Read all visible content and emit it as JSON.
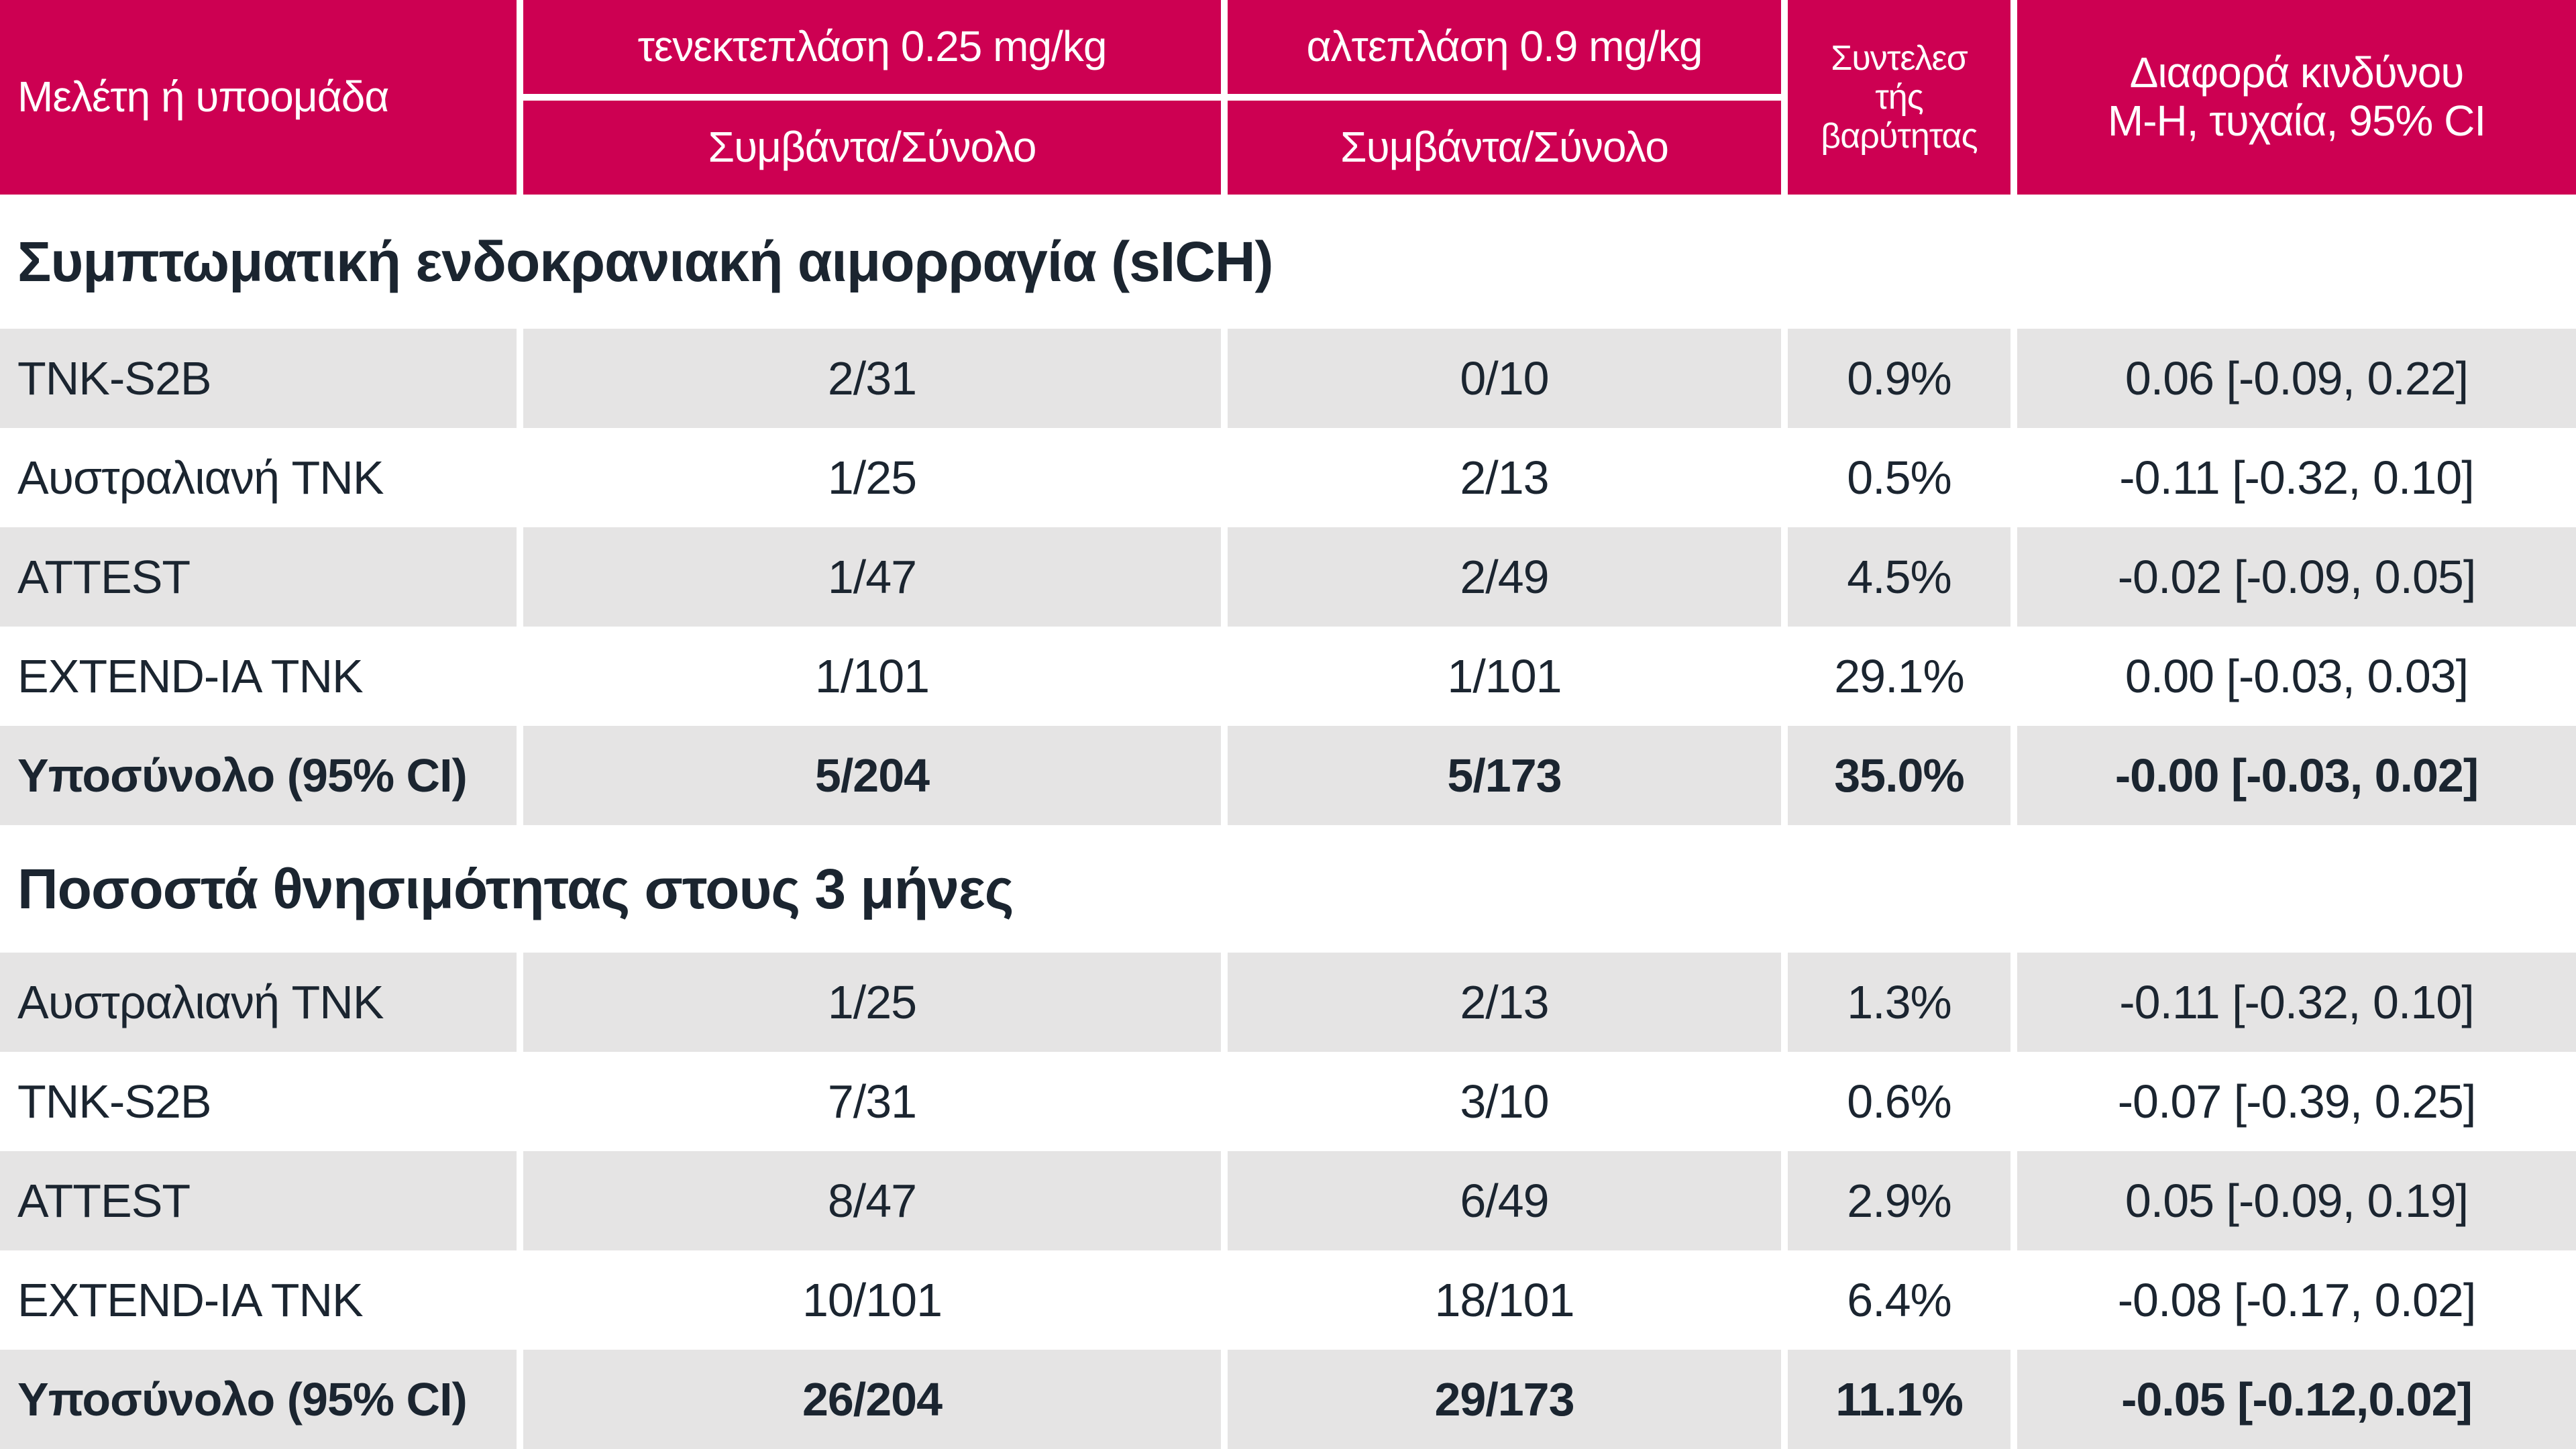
{
  "colors": {
    "header_bg": "#CD0052",
    "header_text": "#FFFFFF",
    "alt_row_bg": "#E5E4E4",
    "text": "#1B2530",
    "page_bg": "#FFFFFF"
  },
  "chart_data": {
    "type": "table",
    "header": {
      "study": "Μελέτη ή υποομάδα",
      "tnk_title": "τενεκτεπλάση 0.25 mg/kg",
      "tnk_sub": "Συμβάντα/Σύνολο",
      "alt_title": "αλτεπλάση 0.9 mg/kg",
      "alt_sub": "Συμβάντα/Σύνολο",
      "weight_lines": [
        "Συντελεσ",
        "τής",
        "βαρύτητας"
      ],
      "rd_line1": "Διαφορά κινδύνου",
      "rd_line2": "M-H, τυχαία, 95% CI"
    },
    "sections": [
      {
        "title": "Συμπτωματική ενδοκρανιακή αιμορραγία (sICH)",
        "rows": [
          {
            "study": "TNK-S2B",
            "tnk": "2/31",
            "alt": "0/10",
            "weight": "0.9%",
            "rd": "0.06 [-0.09, 0.22]"
          },
          {
            "study": "Αυστραλιανή TNK",
            "tnk": "1/25",
            "alt": "2/13",
            "weight": "0.5%",
            "rd": "-0.11 [-0.32, 0.10]"
          },
          {
            "study": "ATTEST",
            "tnk": "1/47",
            "alt": "2/49",
            "weight": "4.5%",
            "rd": "-0.02 [-0.09, 0.05]"
          },
          {
            "study": "EXTEND-IA TNK",
            "tnk": "1/101",
            "alt": "1/101",
            "weight": "29.1%",
            "rd": "0.00 [-0.03, 0.03]"
          },
          {
            "study": "Υποσύνολο (95% CI)",
            "tnk": "5/204",
            "alt": "5/173",
            "weight": "35.0%",
            "rd": "-0.00 [-0.03, 0.02]"
          }
        ]
      },
      {
        "title": "Ποσοστά θνησιμότητας στους 3 μήνες",
        "rows": [
          {
            "study": "Αυστραλιανή TNK",
            "tnk": "1/25",
            "alt": "2/13",
            "weight": "1.3%",
            "rd": "-0.11 [-0.32, 0.10]"
          },
          {
            "study": "TNK-S2B",
            "tnk": "7/31",
            "alt": "3/10",
            "weight": "0.6%",
            "rd": "-0.07 [-0.39, 0.25]"
          },
          {
            "study": "ATTEST",
            "tnk": "8/47",
            "alt": "6/49",
            "weight": "2.9%",
            "rd": "0.05 [-0.09, 0.19]"
          },
          {
            "study": "EXTEND-IA TNK",
            "tnk": "10/101",
            "alt": "18/101",
            "weight": "6.4%",
            "rd": "-0.08 [-0.17, 0.02]"
          },
          {
            "study": "Υποσύνολο (95% CI)",
            "tnk": "26/204",
            "alt": "29/173",
            "weight": "11.1%",
            "rd": "-0.05 [-0.12,0.02]"
          }
        ]
      }
    ]
  }
}
